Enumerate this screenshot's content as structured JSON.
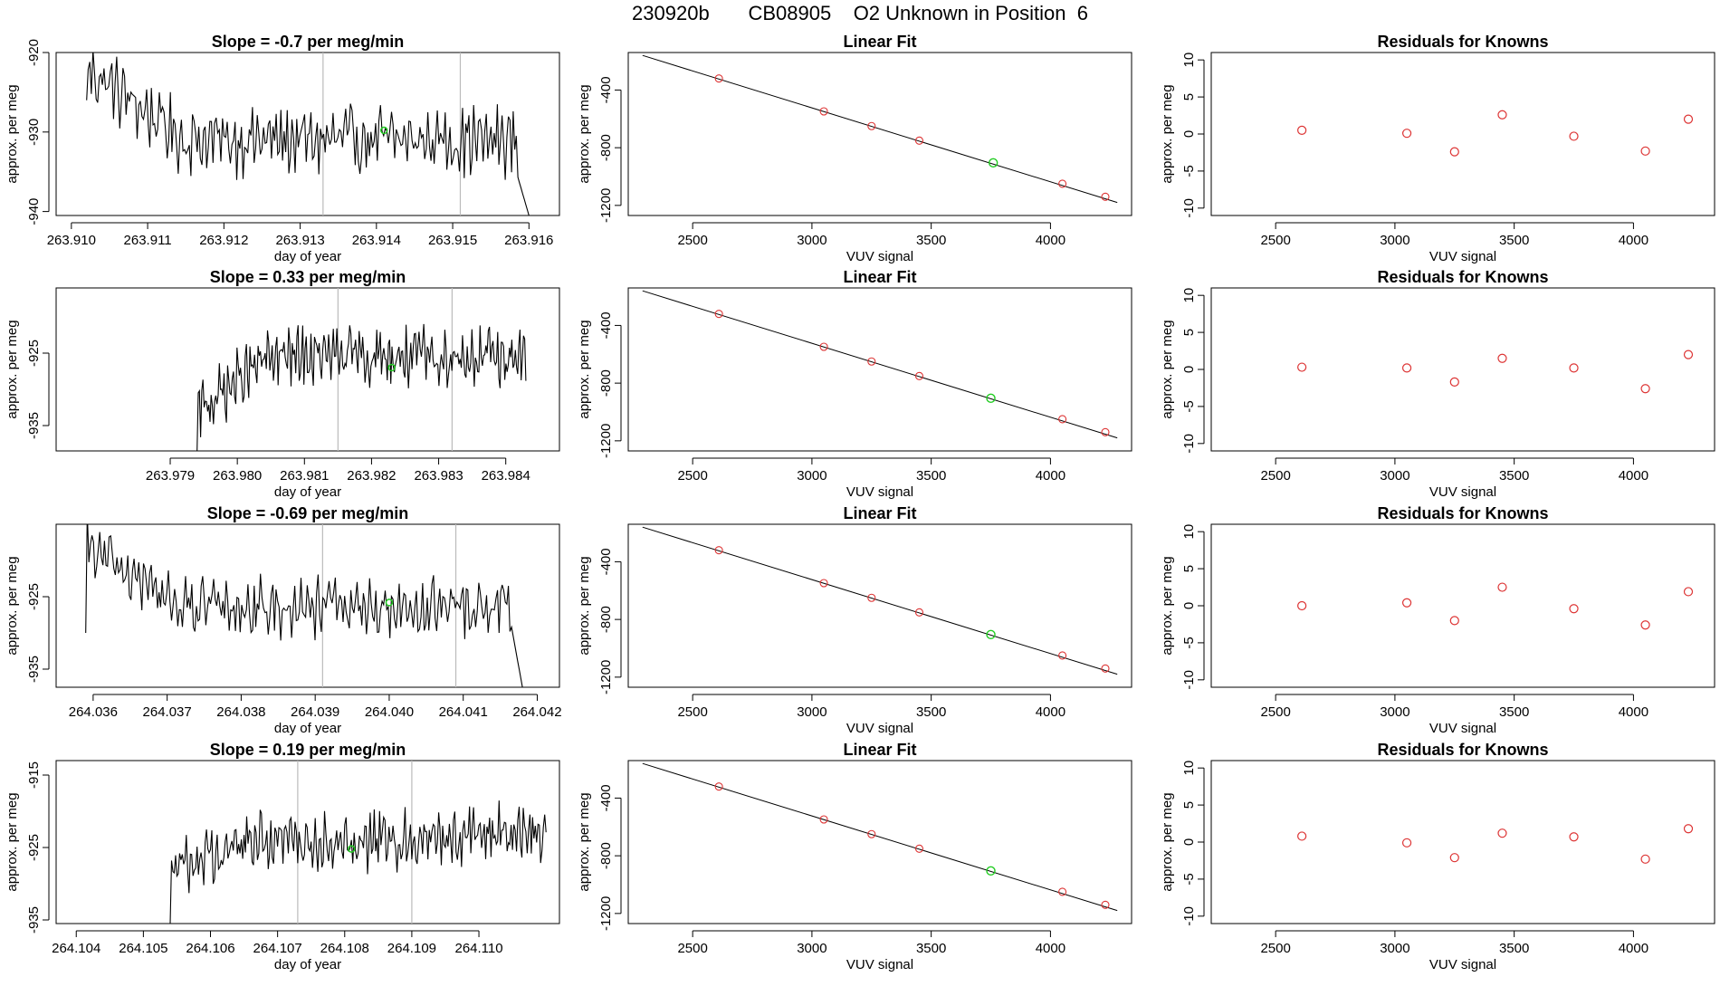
{
  "page": {
    "title_parts": [
      "230920b",
      "CB08905",
      "O2 Unknown in Position  6"
    ]
  },
  "colors": {
    "trace": "#000000",
    "marker_green": "#22cc22",
    "residual_red": "#dd3333",
    "vline": "#bbbbbb"
  },
  "chart_data": [
    {
      "type": "line",
      "row": 0,
      "panel": "time-series",
      "title": "Slope =  -0.7  per meg/min",
      "xlabel": "day of year",
      "ylabel": "approx. per meg",
      "xlim": [
        263.9098,
        263.9164
      ],
      "ylim": [
        -940.5,
        -920.0
      ],
      "xticks": [
        263.91,
        263.911,
        263.912,
        263.913,
        263.914,
        263.915,
        263.916
      ],
      "xtick_labels": [
        "263.910",
        "263.911",
        "263.912",
        "263.913",
        "263.914",
        "263.915",
        "263.916"
      ],
      "yticks": [
        -940,
        -930,
        -920
      ],
      "ytick_labels": [
        "-940",
        "-930",
        "-920"
      ],
      "vlines": [
        263.9133,
        263.9151
      ],
      "green_point": {
        "x": 263.9141,
        "y": -929.8
      },
      "series_shape": {
        "start_x": 263.9102,
        "end_x": 263.916,
        "start_level": -922.0,
        "settle_level": -931.0,
        "noise": 3.2,
        "head": -926.0,
        "tail": -935.0,
        "dropout_end": -940.5,
        "rise_end": false
      }
    },
    {
      "type": "scatter",
      "row": 0,
      "panel": "linear-fit",
      "title": "Linear Fit",
      "xlabel": "VUV signal",
      "ylabel": "approx. per meg",
      "xlim": [
        2230,
        4340
      ],
      "ylim": [
        -1270,
        -140
      ],
      "xticks": [
        2500,
        3000,
        3500,
        4000
      ],
      "xtick_labels": [
        "2500",
        "3000",
        "3500",
        "4000"
      ],
      "yticks": [
        -1200,
        -800,
        -400
      ],
      "ytick_labels": [
        "-1200",
        "-800",
        "-400"
      ],
      "fit_line": {
        "x": [
          2290,
          4280
        ],
        "y": [
          -160,
          -1180
        ]
      },
      "points": {
        "x": [
          2610,
          3050,
          3250,
          3450,
          4050,
          4230
        ],
        "y": [
          -320,
          -548,
          -650,
          -751,
          -1050,
          -1140
        ]
      },
      "green_point": {
        "x": 3760,
        "y": -905
      }
    },
    {
      "type": "scatter",
      "row": 0,
      "panel": "residuals",
      "title": "Residuals for Knowns",
      "xlabel": "VUV signal",
      "ylabel": "approx. per meg",
      "xlim": [
        2230,
        4340
      ],
      "ylim": [
        -11,
        11
      ],
      "xticks": [
        2500,
        3000,
        3500,
        4000
      ],
      "xtick_labels": [
        "2500",
        "3000",
        "3500",
        "4000"
      ],
      "yticks": [
        -10,
        -5,
        0,
        5,
        10
      ],
      "ytick_labels": [
        "-10",
        "-5",
        "0",
        "5",
        "10"
      ],
      "points": {
        "x": [
          2610,
          3050,
          3250,
          3450,
          3750,
          4050,
          4230
        ],
        "y": [
          0.5,
          0.1,
          -2.4,
          2.6,
          -0.3,
          -2.3,
          2.0
        ]
      }
    },
    {
      "type": "line",
      "row": 1,
      "panel": "time-series",
      "title": "Slope =  0.33  per meg/min",
      "xlabel": "day of year",
      "ylabel": "approx. per meg",
      "xlim": [
        263.9773,
        263.9848
      ],
      "ylim": [
        -938.5,
        -916.0
      ],
      "xticks": [
        263.979,
        263.98,
        263.981,
        263.982,
        263.983,
        263.984
      ],
      "xtick_labels": [
        "263.979",
        "263.980",
        "263.981",
        "263.982",
        "263.983",
        "263.984"
      ],
      "yticks": [
        -935,
        -925
      ],
      "ytick_labels": [
        "-935",
        "-925"
      ],
      "vlines": [
        263.9815,
        263.9832
      ],
      "green_point": {
        "x": 263.9823,
        "y": -927.0
      },
      "series_shape": {
        "start_x": 263.9794,
        "end_x": 263.9843,
        "start_level": -933.0,
        "settle_level": -925.5,
        "noise": 3.0,
        "head": -938.5,
        "tail": -926.0,
        "dropout_end": null,
        "rise_end": false,
        "flat_start_x": 263.978
      }
    },
    {
      "type": "scatter",
      "row": 1,
      "panel": "linear-fit",
      "title": "Linear Fit",
      "xlabel": "VUV signal",
      "ylabel": "approx. per meg",
      "xlim": [
        2230,
        4340
      ],
      "ylim": [
        -1270,
        -140
      ],
      "xticks": [
        2500,
        3000,
        3500,
        4000
      ],
      "xtick_labels": [
        "2500",
        "3000",
        "3500",
        "4000"
      ],
      "yticks": [
        -1200,
        -800,
        -400
      ],
      "ytick_labels": [
        "-1200",
        "-800",
        "-400"
      ],
      "fit_line": {
        "x": [
          2290,
          4280
        ],
        "y": [
          -160,
          -1180
        ]
      },
      "points": {
        "x": [
          2610,
          3050,
          3250,
          3450,
          4050,
          4230
        ],
        "y": [
          -320,
          -548,
          -650,
          -751,
          -1050,
          -1140
        ]
      },
      "green_point": {
        "x": 3750,
        "y": -905
      }
    },
    {
      "type": "scatter",
      "row": 1,
      "panel": "residuals",
      "title": "Residuals for Knowns",
      "xlabel": "VUV signal",
      "ylabel": "approx. per meg",
      "xlim": [
        2230,
        4340
      ],
      "ylim": [
        -11,
        11
      ],
      "xticks": [
        2500,
        3000,
        3500,
        4000
      ],
      "xtick_labels": [
        "2500",
        "3000",
        "3500",
        "4000"
      ],
      "yticks": [
        -10,
        -5,
        0,
        5,
        10
      ],
      "ytick_labels": [
        "-10",
        "-5",
        "0",
        "5",
        "10"
      ],
      "points": {
        "x": [
          2610,
          3050,
          3250,
          3450,
          3750,
          4050,
          4230
        ],
        "y": [
          0.3,
          0.2,
          -1.7,
          1.5,
          0.2,
          -2.6,
          2.0
        ]
      }
    },
    {
      "type": "line",
      "row": 2,
      "panel": "time-series",
      "title": "Slope =  -0.69  per meg/min",
      "xlabel": "day of year",
      "ylabel": "approx. per meg",
      "xlim": [
        264.0355,
        264.0423
      ],
      "ylim": [
        -937.5,
        -915.0
      ],
      "xticks": [
        264.036,
        264.037,
        264.038,
        264.039,
        264.04,
        264.041,
        264.042
      ],
      "xtick_labels": [
        "264.036",
        "264.037",
        "264.038",
        "264.039",
        "264.040",
        "264.041",
        "264.042"
      ],
      "yticks": [
        -935,
        -925
      ],
      "ytick_labels": [
        "-935",
        "-925"
      ],
      "vlines": [
        264.0391,
        264.0409
      ],
      "green_point": {
        "x": 264.04,
        "y": -925.8
      },
      "series_shape": {
        "start_x": 264.0359,
        "end_x": 264.0418,
        "start_level": -918.0,
        "settle_level": -926.5,
        "noise": 3.0,
        "head": -930.0,
        "tail": -928.0,
        "dropout_end": -937.5,
        "rise_end": false
      }
    },
    {
      "type": "scatter",
      "row": 2,
      "panel": "linear-fit",
      "title": "Linear Fit",
      "xlabel": "VUV signal",
      "ylabel": "approx. per meg",
      "xlim": [
        2230,
        4340
      ],
      "ylim": [
        -1270,
        -140
      ],
      "xticks": [
        2500,
        3000,
        3500,
        4000
      ],
      "xtick_labels": [
        "2500",
        "3000",
        "3500",
        "4000"
      ],
      "yticks": [
        -1200,
        -800,
        -400
      ],
      "ytick_labels": [
        "-1200",
        "-800",
        "-400"
      ],
      "fit_line": {
        "x": [
          2290,
          4280
        ],
        "y": [
          -160,
          -1180
        ]
      },
      "points": {
        "x": [
          2610,
          3050,
          3250,
          3450,
          4050,
          4230
        ],
        "y": [
          -320,
          -548,
          -650,
          -751,
          -1050,
          -1140
        ]
      },
      "green_point": {
        "x": 3750,
        "y": -905
      }
    },
    {
      "type": "scatter",
      "row": 2,
      "panel": "residuals",
      "title": "Residuals for Knowns",
      "xlabel": "VUV signal",
      "ylabel": "approx. per meg",
      "xlim": [
        2230,
        4340
      ],
      "ylim": [
        -11,
        11
      ],
      "xticks": [
        2500,
        3000,
        3500,
        4000
      ],
      "xtick_labels": [
        "2500",
        "3000",
        "3500",
        "4000"
      ],
      "yticks": [
        -10,
        -5,
        0,
        5,
        10
      ],
      "ytick_labels": [
        "-10",
        "-5",
        "0",
        "5",
        "10"
      ],
      "points": {
        "x": [
          2610,
          3050,
          3250,
          3450,
          3750,
          4050,
          4230
        ],
        "y": [
          0.0,
          0.4,
          -2.0,
          2.5,
          -0.4,
          -2.6,
          1.9
        ]
      }
    },
    {
      "type": "line",
      "row": 3,
      "panel": "time-series",
      "title": "Slope =  0.19  per meg/min",
      "xlabel": "day of year",
      "ylabel": "approx. per meg",
      "xlim": [
        264.1037,
        264.1112
      ],
      "ylim": [
        -935.5,
        -913.0
      ],
      "xticks": [
        264.104,
        264.105,
        264.106,
        264.107,
        264.108,
        264.109,
        264.11
      ],
      "xtick_labels": [
        "264.104",
        "264.105",
        "264.106",
        "264.107",
        "264.108",
        "264.109",
        "264.110"
      ],
      "yticks": [
        -935,
        -925,
        -915
      ],
      "ytick_labels": [
        "-935",
        "-925",
        "-915"
      ],
      "vlines": [
        264.1073,
        264.109
      ],
      "green_point": {
        "x": 264.1081,
        "y": -925.2
      },
      "series_shape": {
        "start_x": 264.1054,
        "end_x": 264.111,
        "start_level": -928.0,
        "settle_level": -924.0,
        "noise": 3.0,
        "head": -935.5,
        "tail": -921.0,
        "dropout_end": null,
        "rise_end": true,
        "flat_start_x": 264.1042
      }
    },
    {
      "type": "scatter",
      "row": 3,
      "panel": "linear-fit",
      "title": "Linear Fit",
      "xlabel": "VUV signal",
      "ylabel": "approx. per meg",
      "xlim": [
        2230,
        4340
      ],
      "ylim": [
        -1270,
        -140
      ],
      "xticks": [
        2500,
        3000,
        3500,
        4000
      ],
      "xtick_labels": [
        "2500",
        "3000",
        "3500",
        "4000"
      ],
      "yticks": [
        -1200,
        -800,
        -400
      ],
      "ytick_labels": [
        "-1200",
        "-800",
        "-400"
      ],
      "fit_line": {
        "x": [
          2290,
          4280
        ],
        "y": [
          -160,
          -1180
        ]
      },
      "points": {
        "x": [
          2610,
          3050,
          3250,
          3450,
          4050,
          4230
        ],
        "y": [
          -320,
          -548,
          -650,
          -751,
          -1050,
          -1140
        ]
      },
      "green_point": {
        "x": 3750,
        "y": -905
      }
    },
    {
      "type": "scatter",
      "row": 3,
      "panel": "residuals",
      "title": "Residuals for Knowns",
      "xlabel": "VUV signal",
      "ylabel": "approx. per meg",
      "xlim": [
        2230,
        4340
      ],
      "ylim": [
        -11,
        11
      ],
      "xticks": [
        2500,
        3000,
        3500,
        4000
      ],
      "xtick_labels": [
        "2500",
        "3000",
        "3500",
        "4000"
      ],
      "yticks": [
        -10,
        -5,
        0,
        5,
        10
      ],
      "ytick_labels": [
        "-10",
        "-5",
        "0",
        "5",
        "10"
      ],
      "points": {
        "x": [
          2610,
          3050,
          3250,
          3450,
          3750,
          4050,
          4230
        ],
        "y": [
          0.8,
          -0.1,
          -2.1,
          1.2,
          0.7,
          -2.3,
          1.8
        ]
      }
    }
  ]
}
